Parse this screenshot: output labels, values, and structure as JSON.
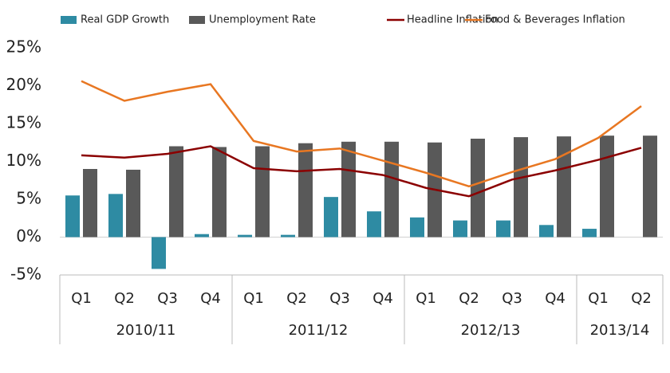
{
  "chart_data": {
    "type": "bar-line",
    "groups": [
      {
        "name": "2010/11",
        "categories": [
          "Q1",
          "Q2",
          "Q3",
          "Q4"
        ]
      },
      {
        "name": "2011/12",
        "categories": [
          "Q1",
          "Q2",
          "Q3",
          "Q4"
        ]
      },
      {
        "name": "2012/13",
        "categories": [
          "Q1",
          "Q2",
          "Q3",
          "Q4"
        ]
      },
      {
        "name": "2013/14",
        "categories": [
          "Q1",
          "Q2"
        ]
      }
    ],
    "series": [
      {
        "name": "Real GDP Growth",
        "type": "bar",
        "color": "#2e8ba3",
        "values": [
          5.5,
          5.7,
          -4.2,
          0.4,
          0.3,
          0.3,
          5.3,
          3.4,
          2.6,
          2.2,
          2.2,
          1.6,
          1.1,
          null
        ]
      },
      {
        "name": "Unemployment Rate",
        "type": "bar",
        "color": "#595959",
        "values": [
          9.0,
          8.9,
          12.0,
          11.9,
          12.0,
          12.4,
          12.6,
          12.6,
          12.5,
          13.0,
          13.2,
          13.3,
          13.4,
          13.4
        ]
      },
      {
        "name": "Headline Inflation",
        "type": "line",
        "color": "#8b0000",
        "values": [
          10.8,
          10.5,
          11.0,
          12.0,
          9.1,
          8.7,
          9.0,
          8.2,
          6.5,
          5.4,
          7.6,
          8.8,
          10.2,
          11.8
        ]
      },
      {
        "name": "Food & Beverages Inflation",
        "type": "line",
        "color": "#e87722",
        "values": [
          20.6,
          18.0,
          19.2,
          20.2,
          12.7,
          11.3,
          11.7,
          10.1,
          8.5,
          6.7,
          8.6,
          10.3,
          13.1,
          17.3
        ]
      }
    ],
    "ylim": [
      -5,
      25
    ],
    "yticks": [
      {
        "value": -5,
        "label": "-5%"
      },
      {
        "value": 0,
        "label": "0%"
      },
      {
        "value": 5,
        "label": "5%"
      },
      {
        "value": 10,
        "label": "10%"
      },
      {
        "value": 15,
        "label": "15%"
      },
      {
        "value": 20,
        "label": "20%"
      },
      {
        "value": 25,
        "label": "25%"
      }
    ],
    "grid": false,
    "legend": "top"
  }
}
